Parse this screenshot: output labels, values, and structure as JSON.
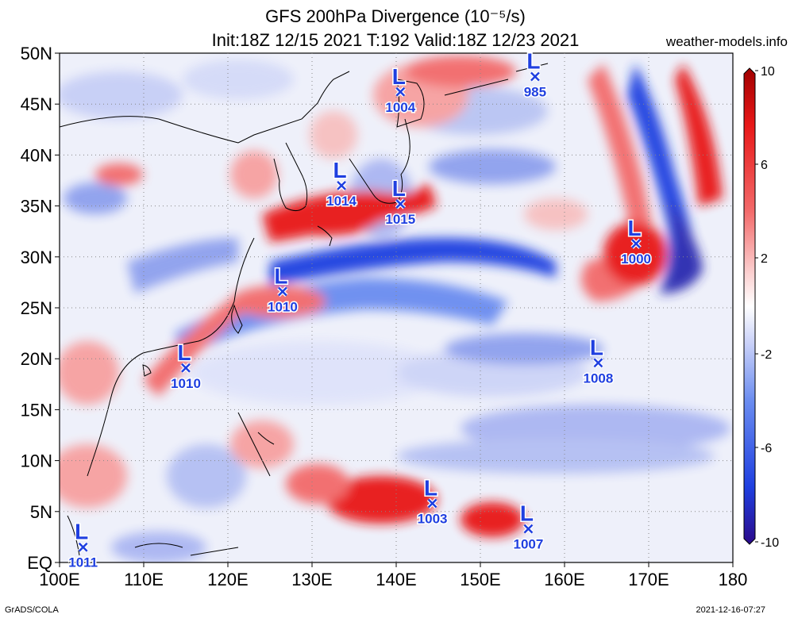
{
  "header": {
    "title": "GFS 200hPa Divergence (10⁻⁵/s)",
    "subtitle": "Init:18Z 12/15 2021 T:192 Valid:18Z 12/23 2021",
    "site": "weather-models.info"
  },
  "footer": {
    "credit": "GrADS/COLA",
    "timestamp": "2021-12-16-07:27"
  },
  "map": {
    "lon_labels": [
      "100E",
      "110E",
      "120E",
      "130E",
      "140E",
      "150E",
      "160E",
      "170E",
      "180"
    ],
    "lat_labels": [
      "EQ",
      "5N",
      "10N",
      "15N",
      "20N",
      "25N",
      "30N",
      "35N",
      "40N",
      "45N",
      "50N"
    ]
  },
  "colorbar": {
    "tick_labels": [
      "10",
      "6",
      "2",
      "-2",
      "-6",
      "-10"
    ],
    "colors": [
      "#2b0a8a",
      "#1f3fe0",
      "#6a8cf0",
      "#c8d0f8",
      "#ffffff",
      "#fbc9c9",
      "#f36a6a",
      "#e81818",
      "#a00000"
    ]
  },
  "lows": [
    {
      "label": "L",
      "pressure": "1004",
      "lon": 140.5,
      "lat": 46.2
    },
    {
      "label": "L",
      "pressure": "985",
      "lon": 156.5,
      "lat": 47.7
    },
    {
      "label": "L",
      "pressure": "1014",
      "lon": 133.5,
      "lat": 37.0
    },
    {
      "label": "L",
      "pressure": "1015",
      "lon": 140.5,
      "lat": 35.2
    },
    {
      "label": "L",
      "pressure": "1000",
      "lon": 168.5,
      "lat": 31.3
    },
    {
      "label": "L",
      "pressure": "1010",
      "lon": 126.5,
      "lat": 26.6
    },
    {
      "label": "L",
      "pressure": "1010",
      "lon": 115.0,
      "lat": 19.1
    },
    {
      "label": "L",
      "pressure": "1008",
      "lon": 164.0,
      "lat": 19.6
    },
    {
      "label": "L",
      "pressure": "1003",
      "lon": 144.3,
      "lat": 5.8
    },
    {
      "label": "L",
      "pressure": "1007",
      "lon": 155.7,
      "lat": 3.3
    },
    {
      "label": "L",
      "pressure": "1011",
      "lon": 102.8,
      "lat": 1.5
    }
  ]
}
